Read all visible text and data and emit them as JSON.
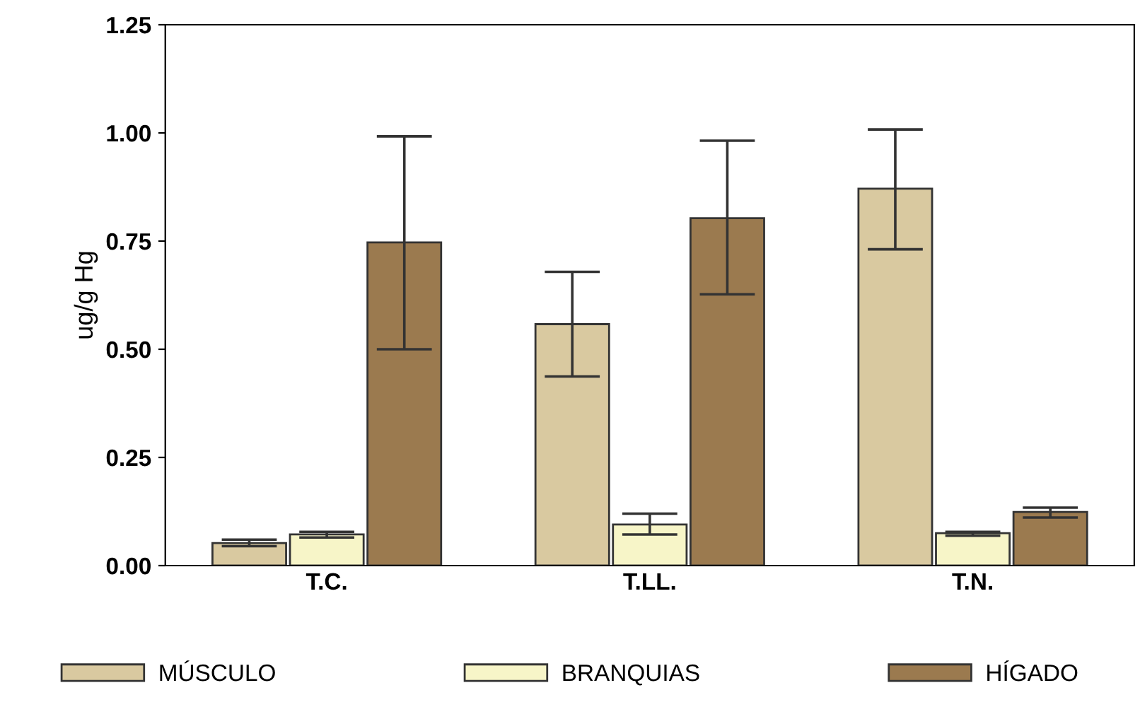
{
  "chart_data": {
    "type": "bar",
    "ylabel": "ug/g Hg",
    "categories": [
      "T.C.",
      "T.LL.",
      "T.N."
    ],
    "series": [
      {
        "name": "MÚSCULO",
        "color": "#d9c9a0",
        "values": [
          0.052,
          0.558,
          0.871
        ],
        "errors": [
          [
            0.045,
            0.06
          ],
          [
            0.437,
            0.679
          ],
          [
            0.731,
            1.008
          ]
        ]
      },
      {
        "name": "BRANQUIAS",
        "color": "#f7f5c8",
        "values": [
          0.072,
          0.095,
          0.075
        ],
        "errors": [
          [
            0.065,
            0.078
          ],
          [
            0.072,
            0.12
          ],
          [
            0.069,
            0.078
          ]
        ]
      },
      {
        "name": "HÍGADO",
        "color": "#9b7a4f",
        "values": [
          0.747,
          0.803,
          0.124
        ],
        "errors": [
          [
            0.5,
            0.992
          ],
          [
            0.627,
            0.982
          ],
          [
            0.111,
            0.134
          ]
        ]
      }
    ],
    "ylim": [
      0,
      1.25
    ],
    "yticks": [
      {
        "value": 0,
        "label": "0.00"
      },
      {
        "value": 0.25,
        "label": "0.25"
      },
      {
        "value": 0.5,
        "label": "0.50"
      },
      {
        "value": 0.75,
        "label": "0.75"
      },
      {
        "value": 1.0,
        "label": "1.00"
      },
      {
        "value": 1.25,
        "label": "1.25"
      }
    ],
    "grid": false,
    "legend": "bottom"
  }
}
